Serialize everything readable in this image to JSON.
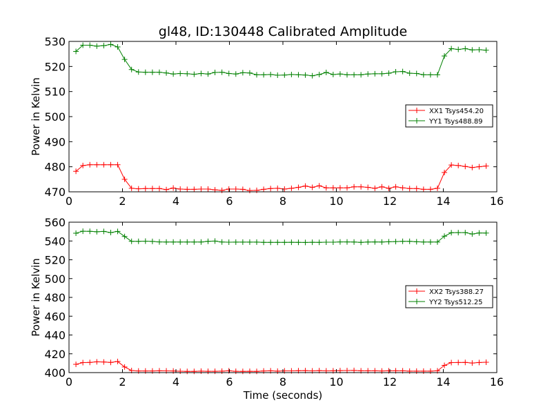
{
  "figure": {
    "title": "gl48, ID:130448 Calibrated Amplitude",
    "xlabel": "Time (seconds)"
  },
  "chart_data": [
    {
      "type": "line",
      "title": "gl48, ID:130448 Calibrated Amplitude",
      "xlabel": "",
      "ylabel": "Power in Kelvin",
      "xlim": [
        0,
        16
      ],
      "ylim": [
        470,
        530
      ],
      "xticks": [
        "0",
        "2",
        "4",
        "6",
        "8",
        "10",
        "12",
        "14",
        "16"
      ],
      "yticks": [
        "470",
        "480",
        "490",
        "500",
        "510",
        "520",
        "530"
      ],
      "grid": false,
      "legend_position": "right",
      "series": [
        {
          "name": "XX1 Tsys454.20",
          "color": "#ff0000",
          "marker": "plus",
          "x": [
            0.26,
            0.52,
            0.78,
            1.04,
            1.3,
            1.56,
            1.82,
            2.08,
            2.34,
            2.6,
            2.86,
            3.12,
            3.38,
            3.64,
            3.9,
            4.16,
            4.42,
            4.68,
            4.94,
            5.2,
            5.46,
            5.72,
            5.98,
            6.24,
            6.5,
            6.76,
            7.02,
            7.28,
            7.54,
            7.8,
            8.06,
            8.32,
            8.58,
            8.84,
            9.1,
            9.36,
            9.62,
            9.88,
            10.14,
            10.4,
            10.66,
            10.92,
            11.18,
            11.44,
            11.7,
            11.96,
            12.22,
            12.48,
            12.74,
            13.0,
            13.26,
            13.52,
            13.78,
            14.04,
            14.3,
            14.56,
            14.82,
            15.08,
            15.34,
            15.6
          ],
          "y": [
            478.2,
            480.5,
            480.8,
            480.8,
            480.8,
            480.8,
            480.8,
            475.0,
            471.4,
            471.2,
            471.3,
            471.3,
            471.3,
            470.9,
            471.5,
            471.1,
            471.0,
            471.0,
            471.1,
            471.1,
            470.8,
            470.6,
            471.1,
            471.1,
            471.0,
            470.5,
            470.6,
            471.0,
            471.3,
            471.4,
            471.1,
            471.4,
            471.8,
            472.3,
            471.8,
            472.4,
            471.6,
            471.6,
            471.6,
            471.6,
            472.0,
            472.0,
            471.8,
            471.4,
            472.0,
            471.4,
            472.0,
            471.6,
            471.3,
            471.3,
            471.0,
            471.0,
            471.4,
            477.7,
            480.7,
            480.5,
            480.1,
            479.7,
            480.0,
            480.3
          ]
        },
        {
          "name": "YY1 Tsys488.89",
          "color": "#008000",
          "marker": "plus",
          "x": [
            0.26,
            0.52,
            0.78,
            1.04,
            1.3,
            1.56,
            1.82,
            2.08,
            2.34,
            2.6,
            2.86,
            3.12,
            3.38,
            3.64,
            3.9,
            4.16,
            4.42,
            4.68,
            4.94,
            5.2,
            5.46,
            5.72,
            5.98,
            6.24,
            6.5,
            6.76,
            7.02,
            7.28,
            7.54,
            7.8,
            8.06,
            8.32,
            8.58,
            8.84,
            9.1,
            9.36,
            9.62,
            9.88,
            10.14,
            10.4,
            10.66,
            10.92,
            11.18,
            11.44,
            11.7,
            11.96,
            12.22,
            12.48,
            12.74,
            13.0,
            13.26,
            13.52,
            13.78,
            14.04,
            14.3,
            14.56,
            14.82,
            15.08,
            15.34,
            15.6
          ],
          "y": [
            526.0,
            528.5,
            528.5,
            528.1,
            528.3,
            528.8,
            527.8,
            522.8,
            518.8,
            517.8,
            517.7,
            517.7,
            517.7,
            517.4,
            517.0,
            517.2,
            517.1,
            516.9,
            517.2,
            517.0,
            517.6,
            517.7,
            517.2,
            517.0,
            517.5,
            517.4,
            516.7,
            516.7,
            516.8,
            516.5,
            516.6,
            516.8,
            516.7,
            516.6,
            516.3,
            516.8,
            517.6,
            516.8,
            517.0,
            516.7,
            516.7,
            516.7,
            517.0,
            517.1,
            517.1,
            517.3,
            517.9,
            518.0,
            517.3,
            517.2,
            516.7,
            516.7,
            516.7,
            524.2,
            527.1,
            526.8,
            527.1,
            526.6,
            526.7,
            526.5
          ]
        }
      ]
    },
    {
      "type": "line",
      "title": "",
      "xlabel": "Time (seconds)",
      "ylabel": "Power in Kelvin",
      "xlim": [
        0,
        16
      ],
      "ylim": [
        400,
        560
      ],
      "xticks": [
        "0",
        "2",
        "4",
        "6",
        "8",
        "10",
        "12",
        "14",
        "16"
      ],
      "yticks": [
        "400",
        "420",
        "440",
        "460",
        "480",
        "500",
        "520",
        "540",
        "560"
      ],
      "grid": false,
      "legend_position": "right",
      "series": [
        {
          "name": "XX2 Tsys388.27",
          "color": "#ff0000",
          "marker": "plus",
          "x": [
            0.26,
            0.52,
            0.78,
            1.04,
            1.3,
            1.56,
            1.82,
            2.08,
            2.34,
            2.6,
            2.86,
            3.12,
            3.38,
            3.64,
            3.9,
            4.16,
            4.42,
            4.68,
            4.94,
            5.2,
            5.46,
            5.72,
            5.98,
            6.24,
            6.5,
            6.76,
            7.02,
            7.28,
            7.54,
            7.8,
            8.06,
            8.32,
            8.58,
            8.84,
            9.1,
            9.36,
            9.62,
            9.88,
            10.14,
            10.4,
            10.66,
            10.92,
            11.18,
            11.44,
            11.7,
            11.96,
            12.22,
            12.48,
            12.74,
            13.0,
            13.26,
            13.52,
            13.78,
            14.04,
            14.3,
            14.56,
            14.82,
            15.08,
            15.34,
            15.6
          ],
          "y": [
            408.8,
            410.6,
            410.8,
            411.5,
            411.3,
            410.8,
            411.8,
            406.0,
            402.2,
            401.7,
            401.7,
            401.7,
            401.9,
            401.8,
            401.7,
            401.5,
            401.3,
            401.3,
            401.6,
            401.4,
            401.4,
            401.6,
            401.9,
            401.4,
            401.3,
            401.4,
            401.3,
            401.7,
            401.9,
            401.6,
            401.8,
            401.8,
            402.0,
            402.1,
            401.8,
            402.1,
            401.8,
            401.9,
            402.1,
            402.2,
            402.3,
            401.9,
            401.9,
            401.9,
            401.7,
            401.9,
            401.9,
            401.9,
            401.6,
            401.6,
            401.6,
            401.6,
            401.9,
            407.7,
            410.6,
            410.7,
            410.8,
            410.2,
            410.7,
            411.0
          ]
        },
        {
          "name": "YY2 Tsys512.25",
          "color": "#008000",
          "marker": "plus",
          "x": [
            0.26,
            0.52,
            0.78,
            1.04,
            1.3,
            1.56,
            1.82,
            2.08,
            2.34,
            2.6,
            2.86,
            3.12,
            3.38,
            3.64,
            3.9,
            4.16,
            4.42,
            4.68,
            4.94,
            5.2,
            5.46,
            5.72,
            5.98,
            6.24,
            6.5,
            6.76,
            7.02,
            7.28,
            7.54,
            7.8,
            8.06,
            8.32,
            8.58,
            8.84,
            9.1,
            9.36,
            9.62,
            9.88,
            10.14,
            10.4,
            10.66,
            10.92,
            11.18,
            11.44,
            11.7,
            11.96,
            12.22,
            12.48,
            12.74,
            13.0,
            13.26,
            13.52,
            13.78,
            14.04,
            14.3,
            14.56,
            14.82,
            15.08,
            15.34,
            15.6
          ],
          "y": [
            548.3,
            550.4,
            550.3,
            549.8,
            550.2,
            549.0,
            550.2,
            544.8,
            539.6,
            539.6,
            539.8,
            539.5,
            539.0,
            538.9,
            538.9,
            538.9,
            538.9,
            538.9,
            538.9,
            539.6,
            539.9,
            538.9,
            538.7,
            538.8,
            538.8,
            538.8,
            538.8,
            538.5,
            538.5,
            538.5,
            538.5,
            538.6,
            538.5,
            538.4,
            538.6,
            538.5,
            538.7,
            538.7,
            539.0,
            539.0,
            538.9,
            538.5,
            538.9,
            539.0,
            538.9,
            539.2,
            539.4,
            539.6,
            539.6,
            539.2,
            538.9,
            538.9,
            538.9,
            545.1,
            548.8,
            548.9,
            548.9,
            547.4,
            548.5,
            548.4
          ]
        }
      ]
    }
  ]
}
